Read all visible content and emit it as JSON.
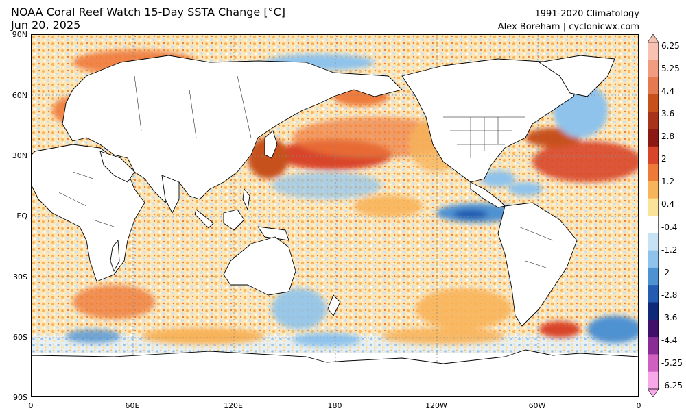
{
  "header": {
    "title_line1": "NOAA Coral Reef Watch 15-Day SSTA Change [°C]",
    "title_line2": "Jun 20, 2025",
    "credit_line1": "1991-2020 Climatology",
    "credit_line2": "Alex Boreham | cyclonicwx.com"
  },
  "axes": {
    "lat_labels": [
      "90N",
      "60N",
      "30N",
      "EQ",
      "30S",
      "60S",
      "90S"
    ],
    "lon_labels": [
      "0",
      "60E",
      "120E",
      "180",
      "120W",
      "60W",
      "0"
    ]
  },
  "colorbar": {
    "labels": [
      "6.25",
      "5.25",
      "4.4",
      "3.6",
      "2.8",
      "2",
      "1.2",
      "0.4",
      "-0.4",
      "-1.2",
      "-2",
      "-2.8",
      "-3.6",
      "-4.4",
      "-5.25",
      "-6.25"
    ],
    "colors": [
      "#f7c2b2",
      "#f19b80",
      "#e57a50",
      "#c7511b",
      "#a6331a",
      "#8b1a12",
      "#d8452a",
      "#ee7a3a",
      "#f8b45a",
      "#fce39a",
      "#ffffff",
      "#c8e2f5",
      "#8fc3eb",
      "#4f92d2",
      "#235cb0",
      "#0e2a78",
      "#40106a",
      "#8a2c96",
      "#d060c0",
      "#f8a8e8"
    ]
  },
  "legend_colors": {
    "land": "#ffffff",
    "coast": "#000000",
    "warm": "#e05a2a",
    "cool": "#4f92d2"
  }
}
